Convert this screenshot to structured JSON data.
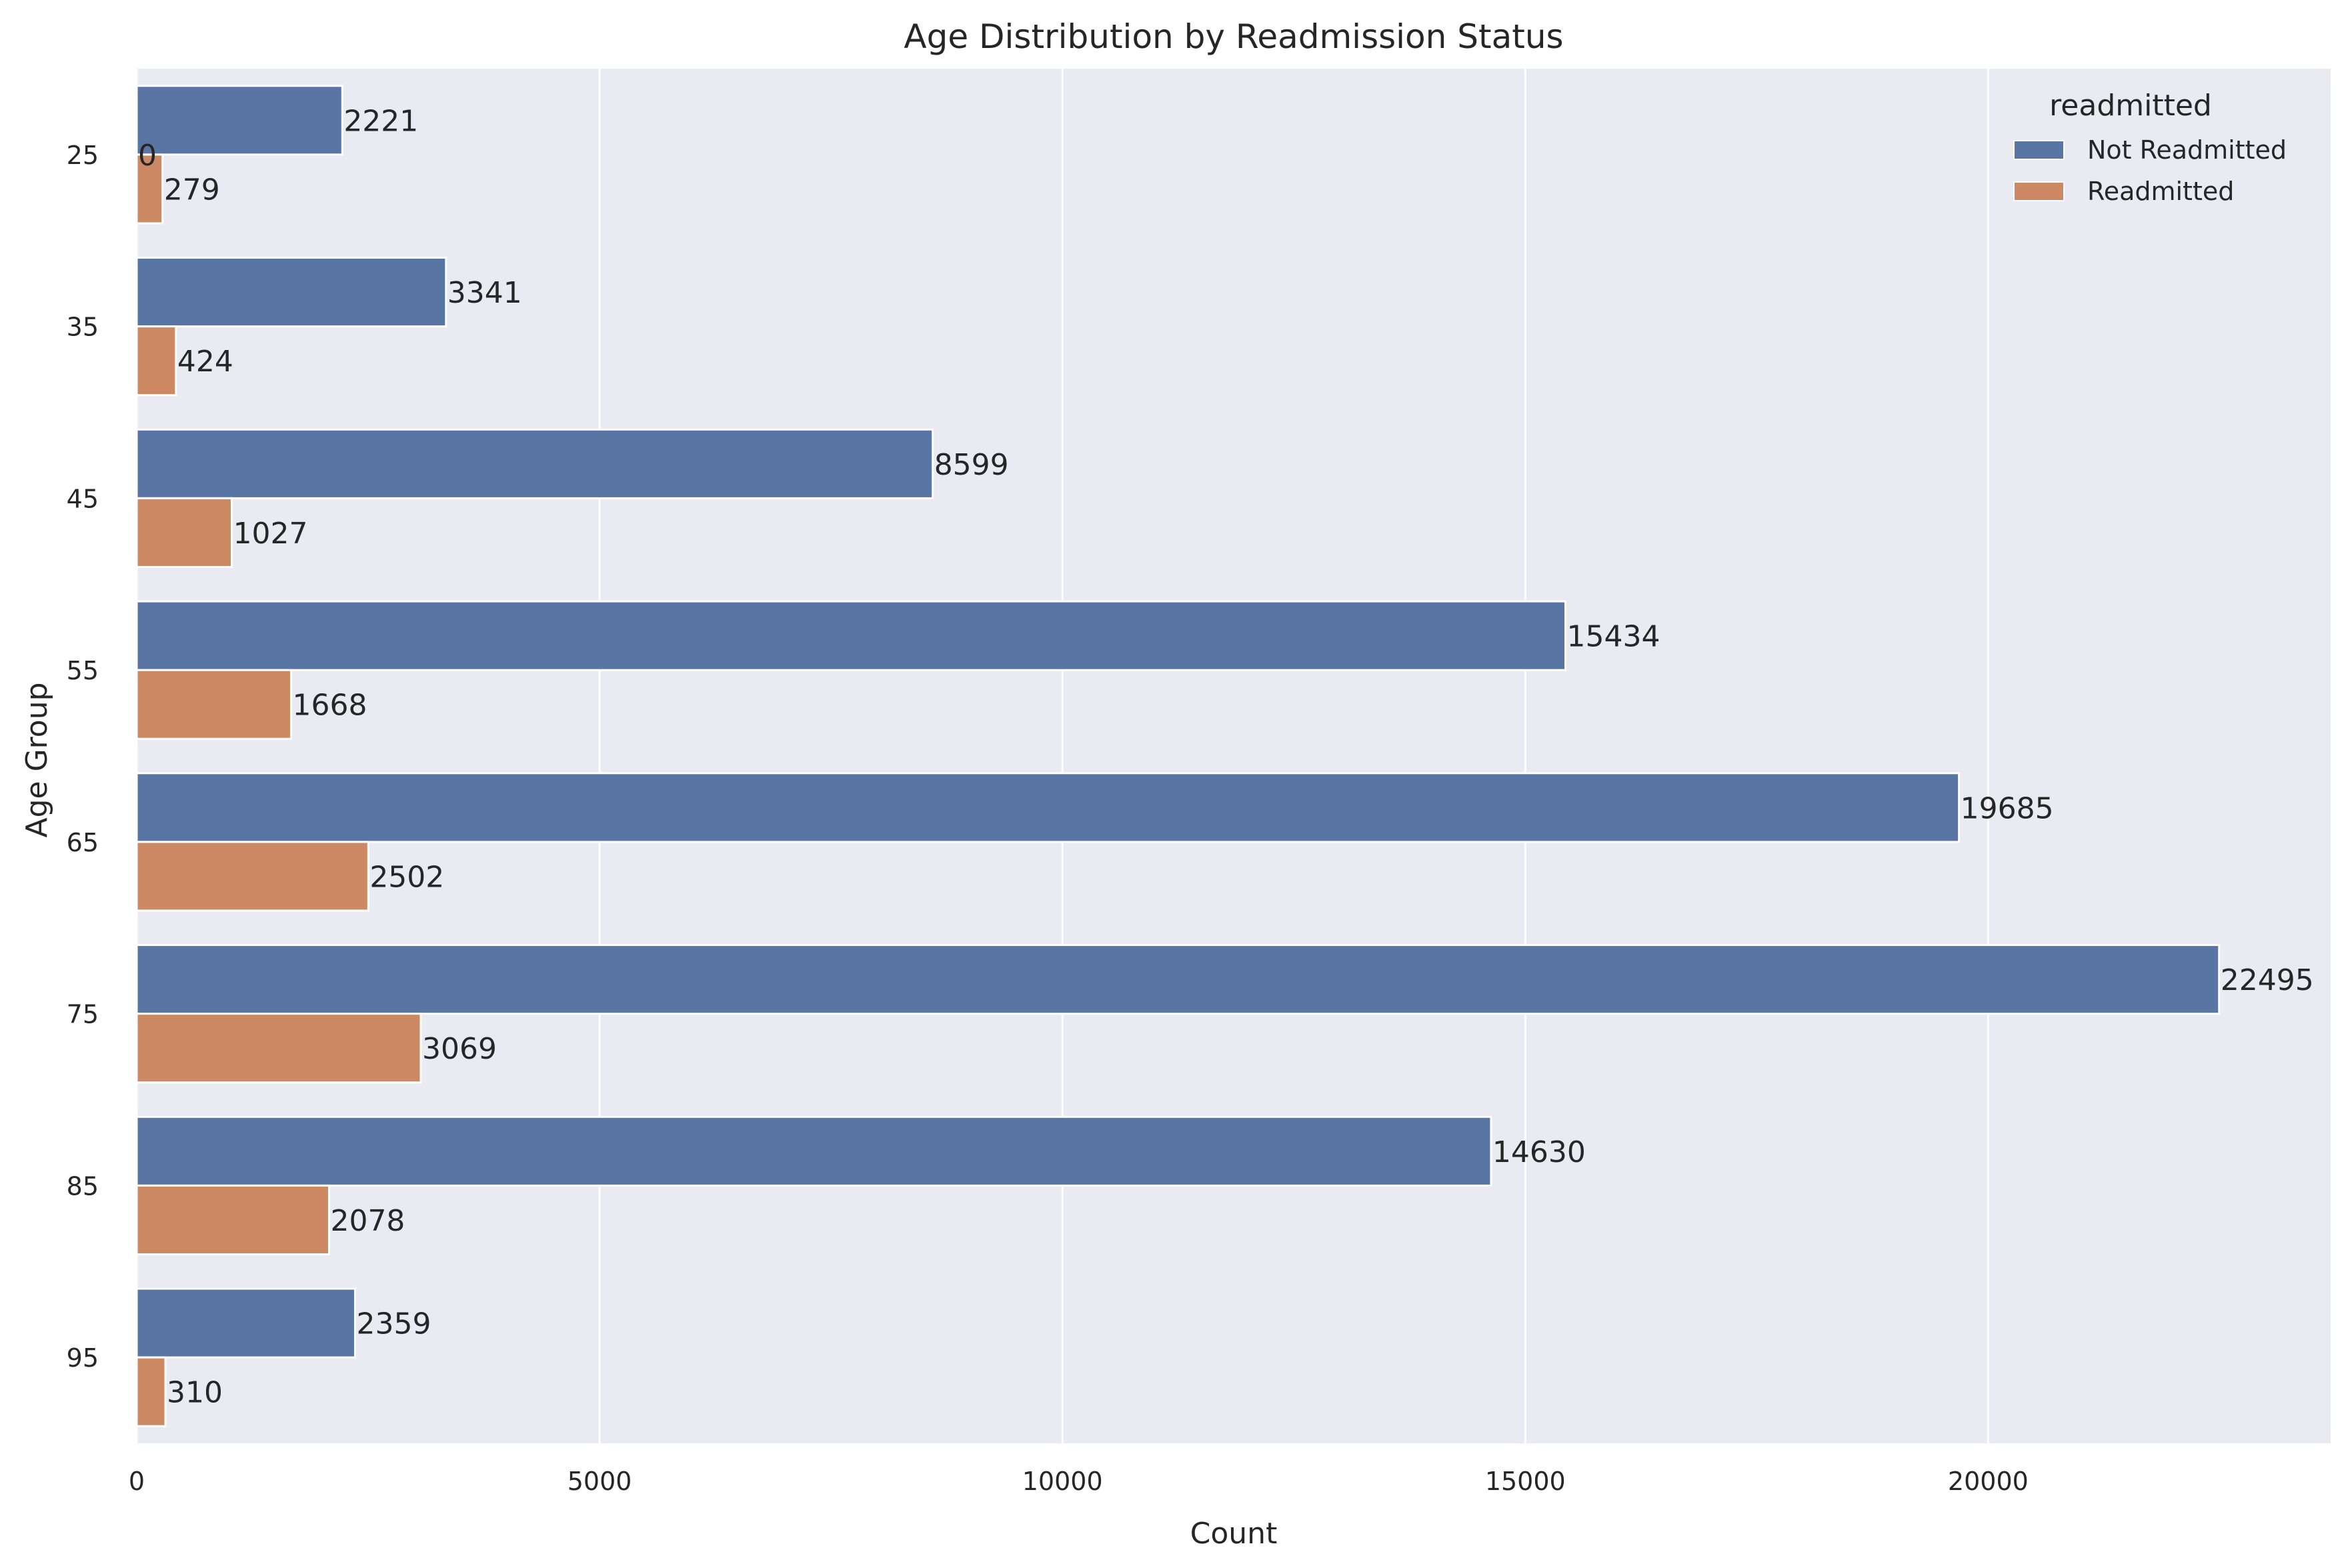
{
  "chart_data": {
    "type": "bar",
    "orientation": "horizontal",
    "title": "Age Distribution by Readmission Status",
    "xlabel": "Count",
    "ylabel": "Age Group",
    "xlim": [
      0,
      23700
    ],
    "x_ticks": [
      0,
      5000,
      10000,
      15000,
      20000
    ],
    "categories": [
      "25",
      "35",
      "45",
      "55",
      "65",
      "75",
      "85",
      "95"
    ],
    "series": [
      {
        "name": "Not Readmitted",
        "color": "#5875a4",
        "values": [
          2221,
          3341,
          8599,
          15434,
          19685,
          22495,
          14630,
          2359
        ]
      },
      {
        "name": "Readmitted",
        "color": "#cc8963",
        "values": [
          279,
          424,
          1027,
          1668,
          2502,
          3069,
          2078,
          310
        ]
      }
    ],
    "annotations": [
      {
        "text": "0",
        "category": "25",
        "value": 0
      }
    ],
    "legend": {
      "title": "readmitted",
      "position": "top-right"
    },
    "grid": true,
    "background": "#eaeaf2"
  }
}
